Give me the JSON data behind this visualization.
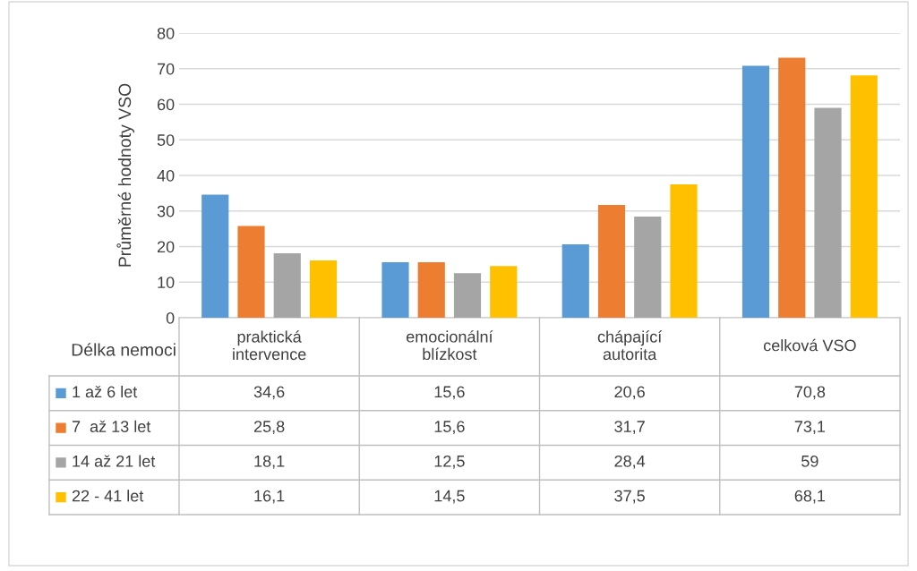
{
  "chart_data": {
    "type": "bar",
    "ylabel": "Průměrné hodnoty VSO",
    "legend_title": "Délka nemoci",
    "categories": [
      "praktická\nintervence",
      "emocionální\nblízkost",
      "chápající\nautorita",
      "celková VSO"
    ],
    "series": [
      {
        "name": "1 až 6 let",
        "color": "#5b9bd5",
        "values": [
          34.6,
          15.6,
          20.6,
          70.8
        ],
        "value_labels": [
          "34,6",
          "15,6",
          "20,6",
          "70,8"
        ]
      },
      {
        "name": "7  až 13 let",
        "color": "#ed7d31",
        "values": [
          25.8,
          15.6,
          31.7,
          73.1
        ],
        "value_labels": [
          "25,8",
          "15,6",
          "31,7",
          "73,1"
        ]
      },
      {
        "name": "14 až 21 let",
        "color": "#a5a5a5",
        "values": [
          18.1,
          12.5,
          28.4,
          59
        ],
        "value_labels": [
          "18,1",
          "12,5",
          "28,4",
          "59"
        ]
      },
      {
        "name": "22 - 41 let",
        "color": "#ffc000",
        "values": [
          16.1,
          14.5,
          37.5,
          68.1
        ],
        "value_labels": [
          "16,1",
          "14,5",
          "37,5",
          "68,1"
        ]
      }
    ],
    "ylim": [
      0,
      80
    ],
    "yticks": [
      0,
      10,
      20,
      30,
      40,
      50,
      60,
      70,
      80
    ],
    "grid": "y",
    "legend": "bottom"
  }
}
